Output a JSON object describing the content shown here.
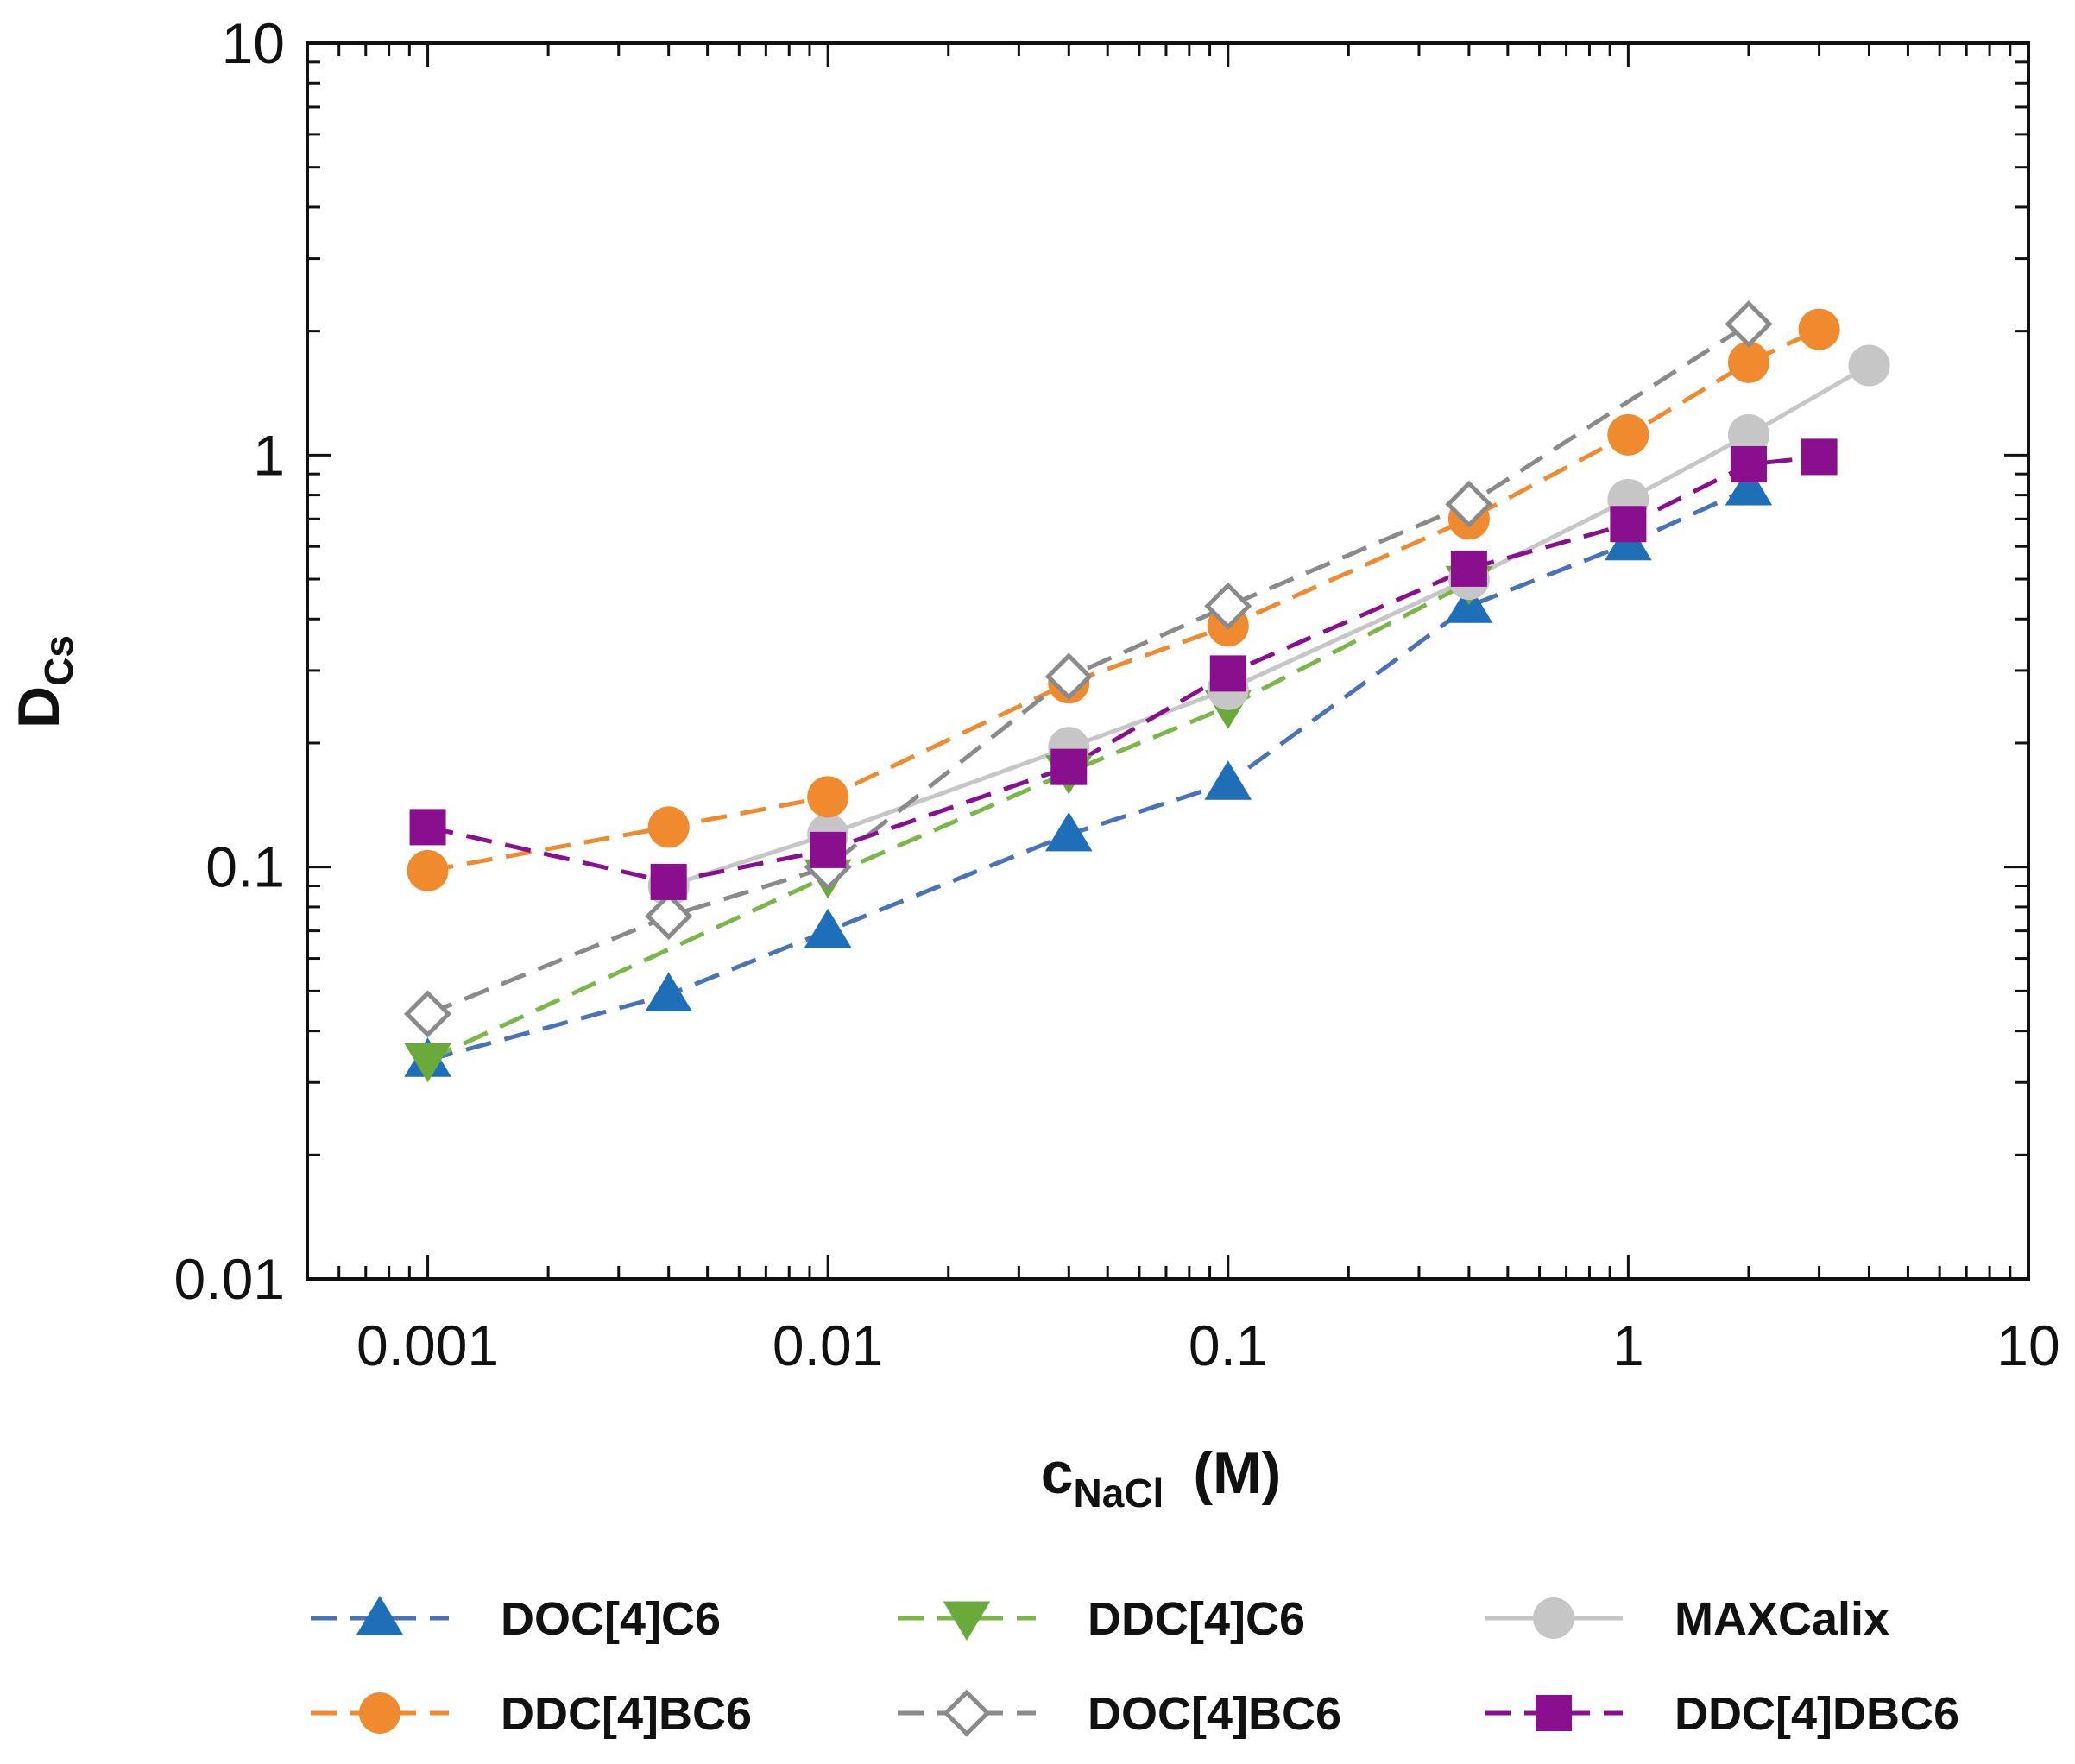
{
  "chart_data": {
    "type": "line",
    "title": "",
    "xlabel": "c",
    "xlabel_subscript": "NaCl",
    "xlabel_unit": "(M)",
    "ylabel": "D",
    "ylabel_subscript": "Cs",
    "xscale": "log",
    "yscale": "log",
    "xlim": [
      0.0005,
      10
    ],
    "ylim": [
      0.01,
      10
    ],
    "x_ticks": [
      {
        "value": 0.001,
        "label": "0.001"
      },
      {
        "value": 0.01,
        "label": "0.01"
      },
      {
        "value": 0.1,
        "label": "0.1"
      },
      {
        "value": 1,
        "label": "1"
      },
      {
        "value": 10,
        "label": "10"
      }
    ],
    "y_ticks": [
      {
        "value": 0.01,
        "label": "0.01"
      },
      {
        "value": 0.1,
        "label": "0.1"
      },
      {
        "value": 1,
        "label": "1"
      },
      {
        "value": 10,
        "label": "10"
      }
    ],
    "grid": false,
    "legend_position": "bottom",
    "series": [
      {
        "name": "DOC[4]C6",
        "color": "#1f6fb8",
        "line_color": "#4a72b8",
        "line_style": "dashed",
        "marker": "triangle-up",
        "x": [
          0.001,
          0.004,
          0.01,
          0.04,
          0.1,
          0.4,
          1,
          2
        ],
        "y": [
          0.034,
          0.049,
          0.07,
          0.12,
          0.16,
          0.43,
          0.61,
          0.83
        ]
      },
      {
        "name": "DDC[4]C6",
        "color": "#6aaa3a",
        "line_color": "#7ab648",
        "line_style": "dashed",
        "marker": "triangle-down",
        "x": [
          0.001,
          0.01,
          0.04,
          0.1,
          0.4
        ],
        "y": [
          0.034,
          0.095,
          0.17,
          0.245,
          0.49
        ]
      },
      {
        "name": "MAXCalix",
        "color": "#c6c6c6",
        "line_color": "#c6c6c6",
        "line_style": "solid",
        "marker": "circle",
        "x": [
          0.004,
          0.01,
          0.04,
          0.1,
          0.4,
          1,
          2,
          4
        ],
        "y": [
          0.09,
          0.12,
          0.195,
          0.27,
          0.5,
          0.78,
          1.12,
          1.65
        ]
      },
      {
        "name": "DDC[4]BC6",
        "color": "#f08a2e",
        "line_color": "#f08a2e",
        "line_style": "dashed",
        "marker": "circle",
        "x": [
          0.001,
          0.004,
          0.01,
          0.04,
          0.1,
          0.4,
          1,
          2,
          3
        ],
        "y": [
          0.098,
          0.125,
          0.148,
          0.28,
          0.385,
          0.7,
          1.12,
          1.68,
          2.02
        ]
      },
      {
        "name": "DOC[4]BC6",
        "color": "#8a8a8a",
        "line_color": "#8a8a8a",
        "line_style": "dashed",
        "marker": "diamond-open",
        "x": [
          0.001,
          0.004,
          0.01,
          0.04,
          0.1,
          0.4,
          2
        ],
        "y": [
          0.044,
          0.076,
          0.1,
          0.29,
          0.43,
          0.76,
          2.08
        ]
      },
      {
        "name": "DDC[4]DBC6",
        "color": "#8a0f8f",
        "line_color": "#8a0f8f",
        "line_style": "dashed",
        "marker": "square",
        "x": [
          0.001,
          0.004,
          0.01,
          0.04,
          0.1,
          0.4,
          1,
          2,
          3
        ],
        "y": [
          0.125,
          0.092,
          0.11,
          0.175,
          0.295,
          0.53,
          0.68,
          0.95,
          0.99
        ]
      }
    ]
  }
}
